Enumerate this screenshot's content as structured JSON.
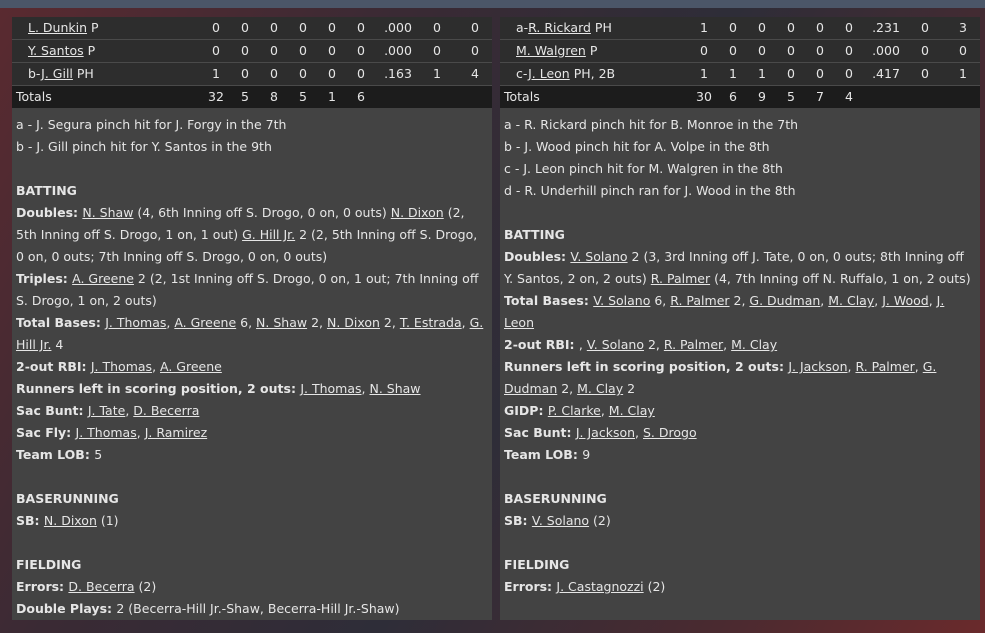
{
  "left": {
    "rows": [
      {
        "prefix": "",
        "name": "L. Dunkin",
        "pos": "P",
        "stats": [
          "0",
          "0",
          "0",
          "0",
          "0",
          "0",
          ".000",
          "0",
          "0"
        ]
      },
      {
        "prefix": "",
        "name": "Y. Santos",
        "pos": "P",
        "stats": [
          "0",
          "0",
          "0",
          "0",
          "0",
          "0",
          ".000",
          "0",
          "0"
        ]
      },
      {
        "prefix": "b-",
        "name": "J. Gill",
        "pos": "PH",
        "stats": [
          "1",
          "0",
          "0",
          "0",
          "0",
          "0",
          ".163",
          "1",
          "4"
        ]
      }
    ],
    "totals": {
      "label": "Totals",
      "stats": [
        "32",
        "5",
        "8",
        "5",
        "1",
        "6"
      ]
    },
    "notes": [
      "a - J. Segura pinch hit for J. Forgy in the 7th",
      "b - J. Gill pinch hit for Y. Santos in the 9th"
    ],
    "sections": [
      {
        "title": "BATTING",
        "items": [
          [
            {
              "t": "Doubles: ",
              "b": 1
            },
            {
              "t": "N. Shaw",
              "u": 1
            },
            {
              "t": " (4, 6th Inning off S. Drogo, 0 on, 0 outs) "
            },
            {
              "t": "N. Dixon",
              "u": 1
            },
            {
              "t": " (2, 5th Inning off S. Drogo, 1 on, 1 out) "
            },
            {
              "t": "G. Hill Jr.",
              "u": 1
            },
            {
              "t": " 2 (2, 5th Inning off S. Drogo, 0 on, 0 outs; 7th Inning off S. Drogo, 0 on, 0 outs)"
            }
          ],
          [
            {
              "t": "Triples: ",
              "b": 1
            },
            {
              "t": "A. Greene",
              "u": 1
            },
            {
              "t": " 2 (2, 1st Inning off S. Drogo, 0 on, 1 out; 7th Inning off S. Drogo, 1 on, 2 outs)"
            }
          ],
          [
            {
              "t": "Total Bases: ",
              "b": 1
            },
            {
              "t": "J. Thomas",
              "u": 1
            },
            {
              "t": ", "
            },
            {
              "t": "A. Greene",
              "u": 1
            },
            {
              "t": " 6, "
            },
            {
              "t": "N. Shaw",
              "u": 1
            },
            {
              "t": " 2, "
            },
            {
              "t": "N. Dixon",
              "u": 1
            },
            {
              "t": " 2, "
            },
            {
              "t": "T. Estrada",
              "u": 1
            },
            {
              "t": ", "
            },
            {
              "t": "G. Hill Jr.",
              "u": 1
            },
            {
              "t": " 4"
            }
          ],
          [
            {
              "t": "2-out RBI: ",
              "b": 1
            },
            {
              "t": "J. Thomas",
              "u": 1
            },
            {
              "t": ", "
            },
            {
              "t": "A. Greene",
              "u": 1
            }
          ],
          [
            {
              "t": "Runners left in scoring position, 2 outs: ",
              "b": 1
            },
            {
              "t": "J. Thomas",
              "u": 1
            },
            {
              "t": ", "
            },
            {
              "t": "N. Shaw",
              "u": 1
            }
          ],
          [
            {
              "t": "Sac Bunt: ",
              "b": 1
            },
            {
              "t": "J. Tate",
              "u": 1
            },
            {
              "t": ", "
            },
            {
              "t": "D. Becerra",
              "u": 1
            }
          ],
          [
            {
              "t": "Sac Fly: ",
              "b": 1
            },
            {
              "t": "J. Thomas",
              "u": 1
            },
            {
              "t": ", "
            },
            {
              "t": "J. Ramirez",
              "u": 1
            }
          ],
          [
            {
              "t": "Team LOB: ",
              "b": 1
            },
            {
              "t": "5"
            }
          ]
        ]
      },
      {
        "title": "BASERUNNING",
        "items": [
          [
            {
              "t": "SB: ",
              "b": 1
            },
            {
              "t": "N. Dixon",
              "u": 1
            },
            {
              "t": " (1)"
            }
          ]
        ]
      },
      {
        "title": "FIELDING",
        "items": [
          [
            {
              "t": "Errors: ",
              "b": 1
            },
            {
              "t": "D. Becerra",
              "u": 1
            },
            {
              "t": " (2)"
            }
          ],
          [
            {
              "t": "Double Plays: ",
              "b": 1
            },
            {
              "t": "2 (Becerra-Hill Jr.-Shaw, Becerra-Hill Jr.-Shaw)"
            }
          ]
        ]
      }
    ]
  },
  "right": {
    "rows": [
      {
        "prefix": "a-",
        "name": "R. Rickard",
        "pos": "PH",
        "stats": [
          "1",
          "0",
          "0",
          "0",
          "0",
          "0",
          ".231",
          "0",
          "3"
        ]
      },
      {
        "prefix": "",
        "name": "M. Walgren",
        "pos": "P",
        "stats": [
          "0",
          "0",
          "0",
          "0",
          "0",
          "0",
          ".000",
          "0",
          "0"
        ]
      },
      {
        "prefix": "c-",
        "name": "J. Leon",
        "pos": "PH, 2B",
        "stats": [
          "1",
          "1",
          "1",
          "0",
          "0",
          "0",
          ".417",
          "0",
          "1"
        ]
      }
    ],
    "totals": {
      "label": "Totals",
      "stats": [
        "30",
        "6",
        "9",
        "5",
        "7",
        "4"
      ]
    },
    "notes": [
      "a - R. Rickard pinch hit for B. Monroe in the 7th",
      "b - J. Wood pinch hit for A. Volpe in the 8th",
      "c - J. Leon pinch hit for M. Walgren in the 8th",
      "d - R. Underhill pinch ran for J. Wood in the 8th"
    ],
    "sections": [
      {
        "title": "BATTING",
        "items": [
          [
            {
              "t": "Doubles: ",
              "b": 1
            },
            {
              "t": "V. Solano",
              "u": 1
            },
            {
              "t": " 2 (3, 3rd Inning off J. Tate, 0 on, 0 outs; 8th Inning off Y. Santos, 2 on, 2 outs) "
            },
            {
              "t": "R. Palmer",
              "u": 1
            },
            {
              "t": " (4, 7th Inning off N. Ruffalo, 1 on, 2 outs)"
            }
          ],
          [
            {
              "t": "Total Bases: ",
              "b": 1
            },
            {
              "t": "V. Solano",
              "u": 1
            },
            {
              "t": " 6, "
            },
            {
              "t": "R. Palmer",
              "u": 1
            },
            {
              "t": " 2, "
            },
            {
              "t": "G. Dudman",
              "u": 1
            },
            {
              "t": ", "
            },
            {
              "t": "M. Clay",
              "u": 1
            },
            {
              "t": ", "
            },
            {
              "t": "J. Wood",
              "u": 1
            },
            {
              "t": ", "
            },
            {
              "t": "J. Leon",
              "u": 1
            }
          ],
          [
            {
              "t": "2-out RBI: ",
              "b": 1
            },
            {
              "t": ", "
            },
            {
              "t": "V. Solano",
              "u": 1
            },
            {
              "t": " 2, "
            },
            {
              "t": "R. Palmer",
              "u": 1
            },
            {
              "t": ", "
            },
            {
              "t": "M. Clay",
              "u": 1
            }
          ],
          [
            {
              "t": "Runners left in scoring position, 2 outs: ",
              "b": 1
            },
            {
              "t": "J. Jackson",
              "u": 1
            },
            {
              "t": ", "
            },
            {
              "t": "R. Palmer",
              "u": 1
            },
            {
              "t": ", "
            },
            {
              "t": "G. Dudman",
              "u": 1
            },
            {
              "t": " 2, "
            },
            {
              "t": "M. Clay",
              "u": 1
            },
            {
              "t": " 2"
            }
          ],
          [
            {
              "t": "GIDP: ",
              "b": 1
            },
            {
              "t": "P. Clarke",
              "u": 1
            },
            {
              "t": ", "
            },
            {
              "t": "M. Clay",
              "u": 1
            }
          ],
          [
            {
              "t": "Sac Bunt: ",
              "b": 1
            },
            {
              "t": "J. Jackson",
              "u": 1
            },
            {
              "t": ", "
            },
            {
              "t": "S. Drogo",
              "u": 1
            }
          ],
          [
            {
              "t": "Team LOB: ",
              "b": 1
            },
            {
              "t": "9"
            }
          ]
        ]
      },
      {
        "title": "BASERUNNING",
        "items": [
          [
            {
              "t": "SB: ",
              "b": 1
            },
            {
              "t": "V. Solano",
              "u": 1
            },
            {
              "t": " (2)"
            }
          ]
        ]
      },
      {
        "title": "FIELDING",
        "items": [
          [
            {
              "t": "Errors: ",
              "b": 1
            },
            {
              "t": "J. Castagnozzi",
              "u": 1
            },
            {
              "t": " (2)"
            }
          ]
        ]
      }
    ]
  }
}
